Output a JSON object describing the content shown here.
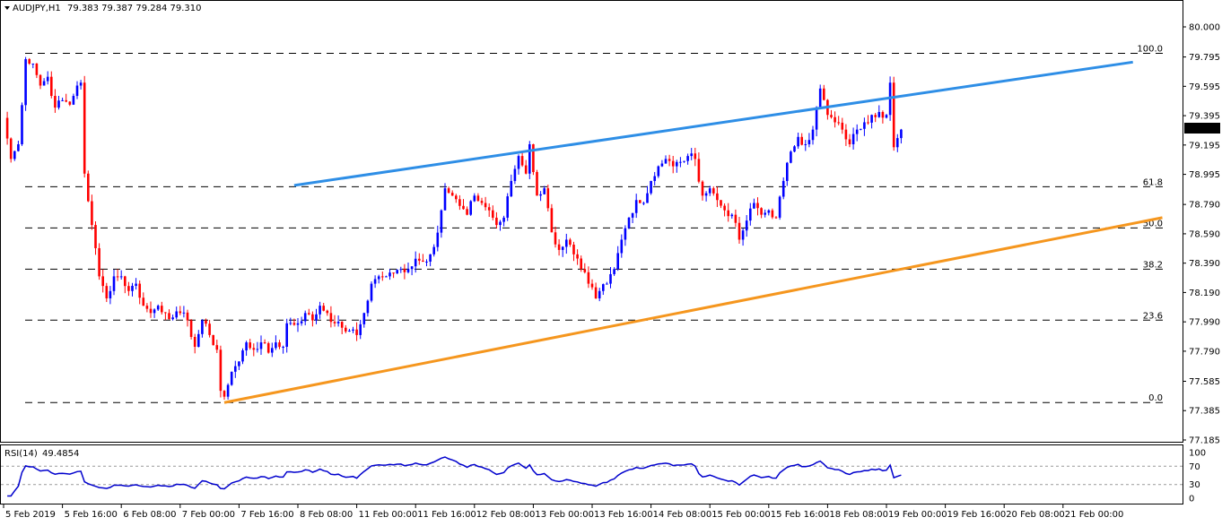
{
  "chart_data": [
    {
      "type": "candlestick",
      "header": {
        "symbol_label": "AUDJPY,H1",
        "ohlc_label": "79.383 79.387 79.284 79.310"
      },
      "price_axis": {
        "ylim": [
          77.185,
          80.0
        ],
        "tick_labels": [
          "80.000",
          "79.795",
          "79.595",
          "79.395",
          "79.195",
          "78.995",
          "78.790",
          "78.590",
          "78.390",
          "78.190",
          "77.990",
          "77.790",
          "77.585",
          "77.385",
          "77.185"
        ],
        "tick_values": [
          80.0,
          79.795,
          79.595,
          79.395,
          79.195,
          78.995,
          78.79,
          78.59,
          78.39,
          78.19,
          77.99,
          77.79,
          77.585,
          77.385,
          77.185
        ],
        "current_price_label": "79.310",
        "current_price": 79.31
      },
      "fibonacci": {
        "high": 79.82,
        "low": 77.44,
        "levels": [
          {
            "label": "100.0",
            "ratio": 1.0
          },
          {
            "label": "61.8",
            "ratio": 0.618
          },
          {
            "label": "50.0",
            "ratio": 0.5
          },
          {
            "label": "38.2",
            "ratio": 0.382
          },
          {
            "label": "23.6",
            "ratio": 0.236
          },
          {
            "label": "0.0",
            "ratio": 0.0
          }
        ]
      },
      "trend_lines": [
        {
          "name": "upper",
          "color": "#2e8ee6",
          "from_bar": 79,
          "from_price": 78.92,
          "to_bar": 307,
          "to_price": 79.76
        },
        {
          "name": "lower",
          "color": "#f5961e",
          "from_bar": 60,
          "from_price": 77.44,
          "to_bar": 315,
          "to_price": 78.7
        }
      ],
      "candle_colors": {
        "up": "#0000ff",
        "down": "#ff0000"
      },
      "waypoints": [
        [
          0,
          79.38
        ],
        [
          2,
          79.1
        ],
        [
          4,
          79.2
        ],
        [
          6,
          79.78
        ],
        [
          8,
          79.75
        ],
        [
          10,
          79.6
        ],
        [
          12,
          79.66
        ],
        [
          14,
          79.45
        ],
        [
          16,
          79.5
        ],
        [
          18,
          79.47
        ],
        [
          20,
          79.6
        ],
        [
          21,
          79.62
        ],
        [
          22,
          79.0
        ],
        [
          24,
          78.65
        ],
        [
          26,
          78.3
        ],
        [
          28,
          78.15
        ],
        [
          30,
          78.3
        ],
        [
          32,
          78.3
        ],
        [
          34,
          78.2
        ],
        [
          36,
          78.25
        ],
        [
          38,
          78.1
        ],
        [
          40,
          78.05
        ],
        [
          42,
          78.1
        ],
        [
          44,
          78.05
        ],
        [
          46,
          78.02
        ],
        [
          48,
          78.05
        ],
        [
          50,
          78.0
        ],
        [
          52,
          77.82
        ],
        [
          54,
          78.0
        ],
        [
          56,
          77.9
        ],
        [
          58,
          77.8
        ],
        [
          59,
          77.52
        ],
        [
          60,
          77.48
        ],
        [
          62,
          77.65
        ],
        [
          64,
          77.72
        ],
        [
          66,
          77.85
        ],
        [
          68,
          77.8
        ],
        [
          70,
          77.85
        ],
        [
          72,
          77.78
        ],
        [
          74,
          77.85
        ],
        [
          76,
          77.82
        ],
        [
          77,
          77.98
        ],
        [
          80,
          77.98
        ],
        [
          82,
          78.05
        ],
        [
          84,
          78.0
        ],
        [
          86,
          78.1
        ],
        [
          88,
          78.05
        ],
        [
          90,
          77.98
        ],
        [
          92,
          77.95
        ],
        [
          94,
          77.93
        ],
        [
          96,
          77.9
        ],
        [
          98,
          78.05
        ],
        [
          100,
          78.25
        ],
        [
          102,
          78.3
        ],
        [
          104,
          78.3
        ],
        [
          106,
          78.32
        ],
        [
          108,
          78.35
        ],
        [
          110,
          78.35
        ],
        [
          112,
          78.42
        ],
        [
          114,
          78.4
        ],
        [
          116,
          78.45
        ],
        [
          117,
          78.5
        ],
        [
          119,
          78.75
        ],
        [
          120,
          78.9
        ],
        [
          122,
          78.85
        ],
        [
          124,
          78.78
        ],
        [
          126,
          78.72
        ],
        [
          128,
          78.85
        ],
        [
          130,
          78.8
        ],
        [
          132,
          78.75
        ],
        [
          134,
          78.65
        ],
        [
          136,
          78.7
        ],
        [
          138,
          78.95
        ],
        [
          140,
          79.12
        ],
        [
          142,
          79.0
        ],
        [
          143,
          79.2
        ],
        [
          145,
          78.85
        ],
        [
          147,
          78.9
        ],
        [
          149,
          78.6
        ],
        [
          151,
          78.48
        ],
        [
          153,
          78.55
        ],
        [
          155,
          78.45
        ],
        [
          157,
          78.35
        ],
        [
          159,
          78.25
        ],
        [
          161,
          78.15
        ],
        [
          162,
          78.2
        ],
        [
          164,
          78.25
        ],
        [
          166,
          78.35
        ],
        [
          168,
          78.55
        ],
        [
          170,
          78.7
        ],
        [
          172,
          78.82
        ],
        [
          174,
          78.8
        ],
        [
          176,
          78.95
        ],
        [
          178,
          79.05
        ],
        [
          180,
          79.1
        ],
        [
          182,
          79.05
        ],
        [
          184,
          79.08
        ],
        [
          186,
          79.12
        ],
        [
          188,
          79.1
        ],
        [
          190,
          78.85
        ],
        [
          192,
          78.9
        ],
        [
          194,
          78.82
        ],
        [
          196,
          78.75
        ],
        [
          198,
          78.72
        ],
        [
          200,
          78.55
        ],
        [
          202,
          78.68
        ],
        [
          204,
          78.8
        ],
        [
          206,
          78.72
        ],
        [
          208,
          78.75
        ],
        [
          210,
          78.7
        ],
        [
          212,
          78.95
        ],
        [
          214,
          79.15
        ],
        [
          216,
          79.25
        ],
        [
          218,
          79.2
        ],
        [
          220,
          79.3
        ],
        [
          222,
          79.58
        ],
        [
          224,
          79.4
        ],
        [
          226,
          79.35
        ],
        [
          228,
          79.3
        ],
        [
          230,
          79.2
        ],
        [
          232,
          79.3
        ],
        [
          234,
          79.35
        ],
        [
          236,
          79.4
        ],
        [
          238,
          79.42
        ],
        [
          240,
          79.4
        ],
        [
          241,
          79.62
        ],
        [
          242,
          79.18
        ],
        [
          244,
          79.3
        ]
      ],
      "time_axis": {
        "labels": [
          "5 Feb 2019",
          "5 Feb 16:00",
          "6 Feb 08:00",
          "7 Feb 00:00",
          "7 Feb 16:00",
          "8 Feb 08:00",
          "11 Feb 00:00",
          "11 Feb 16:00",
          "12 Feb 08:00",
          "13 Feb 00:00",
          "13 Feb 16:00",
          "14 Feb 08:00",
          "15 Feb 00:00",
          "15 Feb 16:00",
          "18 Feb 08:00",
          "19 Feb 00:00",
          "19 Feb 16:00",
          "20 Feb 08:00",
          "21 Feb 00:00"
        ],
        "bar_index": [
          0,
          16,
          32,
          48,
          64,
          80,
          96,
          112,
          128,
          144,
          160,
          176,
          192,
          208,
          224,
          240,
          256,
          272,
          288
        ]
      }
    },
    {
      "type": "line",
      "header": {
        "indicator_label": "RSI(14)",
        "value_label": "49.4854"
      },
      "ylim": [
        0,
        100
      ],
      "tick_labels": [
        "100",
        "70",
        "30",
        "0"
      ],
      "tick_values": [
        100,
        70,
        30,
        0
      ],
      "levels": [
        70,
        30
      ],
      "line_color": "#0000cd",
      "current_value": 49.4854
    }
  ]
}
